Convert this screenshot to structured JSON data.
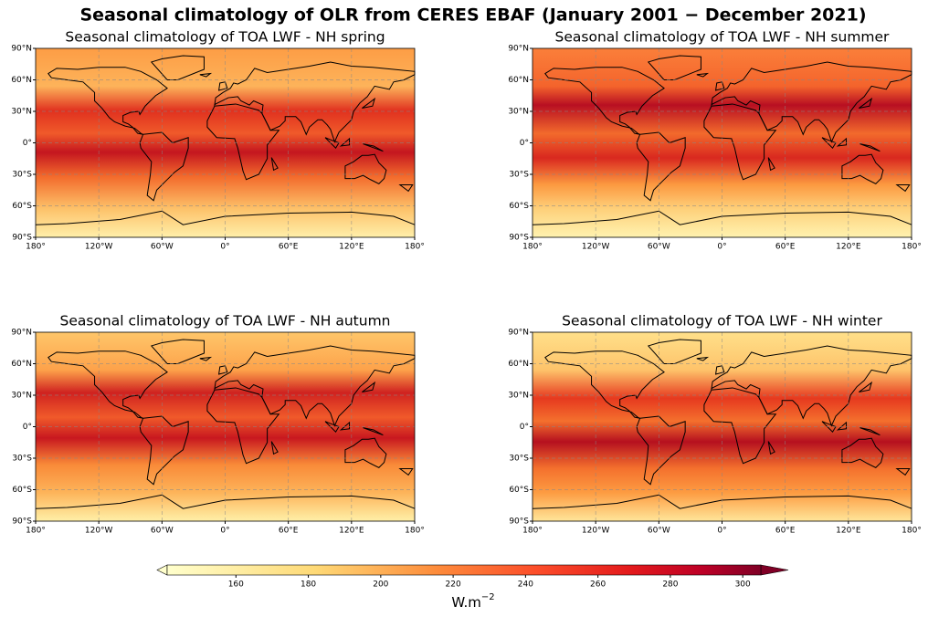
{
  "title": "Seasonal climatology of OLR from CERES EBAF (January 2001 − December 2021)",
  "panels": [
    {
      "title": "Seasonal climatology of TOA LWF - NH spring"
    },
    {
      "title": "Seasonal climatology of TOA LWF - NH summer"
    },
    {
      "title": "Seasonal climatology of TOA LWF - NH autumn"
    },
    {
      "title": "Seasonal climatology of TOA LWF - NH winter"
    }
  ],
  "lon_lim": [
    -180,
    180
  ],
  "lat_lim": [
    -90,
    90
  ],
  "lon_ticks": [
    {
      "value": -180,
      "label": "180°"
    },
    {
      "value": -120,
      "label": "120°W"
    },
    {
      "value": -60,
      "label": "60°W"
    },
    {
      "value": 0,
      "label": "0°"
    },
    {
      "value": 60,
      "label": "60°E"
    },
    {
      "value": 120,
      "label": "120°E"
    },
    {
      "value": 180,
      "label": "180°"
    }
  ],
  "lat_ticks": [
    {
      "value": 90,
      "label": "90°N"
    },
    {
      "value": 60,
      "label": "60°N"
    },
    {
      "value": 30,
      "label": "30°N"
    },
    {
      "value": 0,
      "label": "0°"
    },
    {
      "value": -30,
      "label": "30°S"
    },
    {
      "value": -60,
      "label": "60°S"
    },
    {
      "value": -90,
      "label": "90°S"
    }
  ],
  "colorbar": {
    "lim": [
      141,
      305
    ],
    "ticks": [
      160,
      180,
      200,
      220,
      240,
      260,
      280,
      300
    ],
    "label": "W.m",
    "label_exponent": "−2"
  }
}
